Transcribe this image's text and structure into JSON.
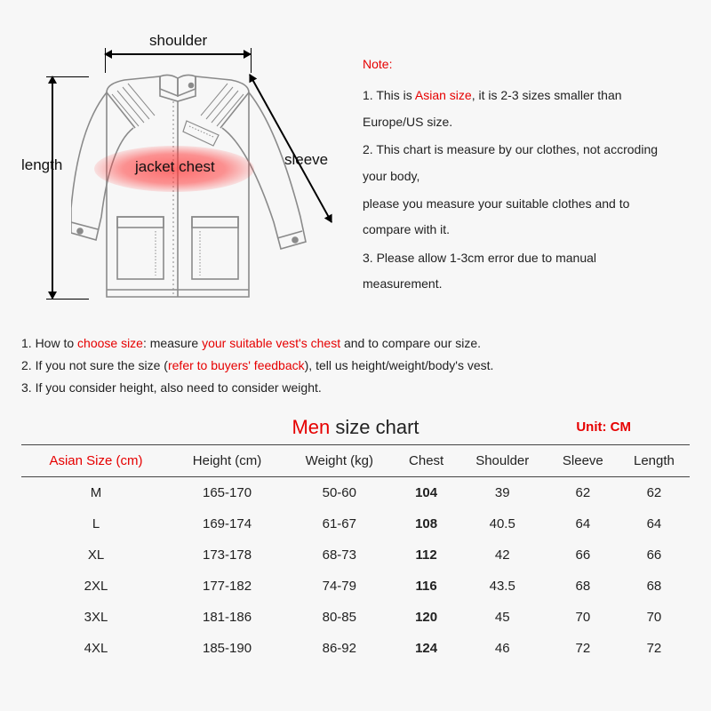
{
  "diagram": {
    "labels": {
      "shoulder": "shoulder",
      "length": "length",
      "sleeve": "sleeve",
      "chest": "jacket chest"
    },
    "colors": {
      "jacket_stroke": "#888888",
      "jacket_stroke_dark": "#555555",
      "arrow_color": "#000000",
      "chest_highlight": "rgba(255,60,60,0.6)"
    }
  },
  "notes": {
    "header": "Note:",
    "items": [
      {
        "pre": "1. This is ",
        "hl": "Asian size",
        "post": ", it is 2-3 sizes smaller than Europe/US size."
      },
      {
        "pre": "2. This chart is measure by our clothes, not accroding your body,",
        "hl": "",
        "post": ""
      },
      {
        "pre": "please you measure your suitable clothes and to compare with it.",
        "hl": "",
        "post": ""
      },
      {
        "pre": "3. Please allow 1-3cm error due to manual measurement.",
        "hl": "",
        "post": ""
      }
    ]
  },
  "instructions": {
    "lines": [
      {
        "n": "1. How to ",
        "r1": "choose size",
        "m": ": measure ",
        "r2": "your suitable vest's chest",
        "e": " and to compare our size."
      },
      {
        "n": "2. If you not sure the size (",
        "r1": "refer to buyers' feedback",
        "m": "), tell us height/weight/body's vest.",
        "r2": "",
        "e": ""
      },
      {
        "n": "3. If you consider height, also need to consider weight.",
        "r1": "",
        "m": "",
        "r2": "",
        "e": ""
      }
    ]
  },
  "chart": {
    "title_red": "Men",
    "title_rest": " size chart",
    "unit_label": "Unit: CM",
    "columns": [
      "Asian Size (cm)",
      "Height (cm)",
      "Weight (kg)",
      "Chest",
      "Shoulder",
      "Sleeve",
      "Length"
    ],
    "rows": [
      [
        "M",
        "165-170",
        "50-60",
        "104",
        "39",
        "62",
        "62"
      ],
      [
        "L",
        "169-174",
        "61-67",
        "108",
        "40.5",
        "64",
        "64"
      ],
      [
        "XL",
        "173-178",
        "68-73",
        "112",
        "42",
        "66",
        "66"
      ],
      [
        "2XL",
        "177-182",
        "74-79",
        "116",
        "43.5",
        "68",
        "68"
      ],
      [
        "3XL",
        "181-186",
        "80-85",
        "120",
        "45",
        "70",
        "70"
      ],
      [
        "4XL",
        "185-190",
        "86-92",
        "124",
        "46",
        "72",
        "72"
      ]
    ],
    "chest_col_index": 3,
    "asian_col_index": 0,
    "colors": {
      "border": "#444444",
      "red": "#e60000",
      "text": "#222222",
      "background": "#f7f7f7"
    },
    "fonts": {
      "title_size_pt": 17,
      "header_size_pt": 11,
      "cell_size_pt": 11
    }
  }
}
